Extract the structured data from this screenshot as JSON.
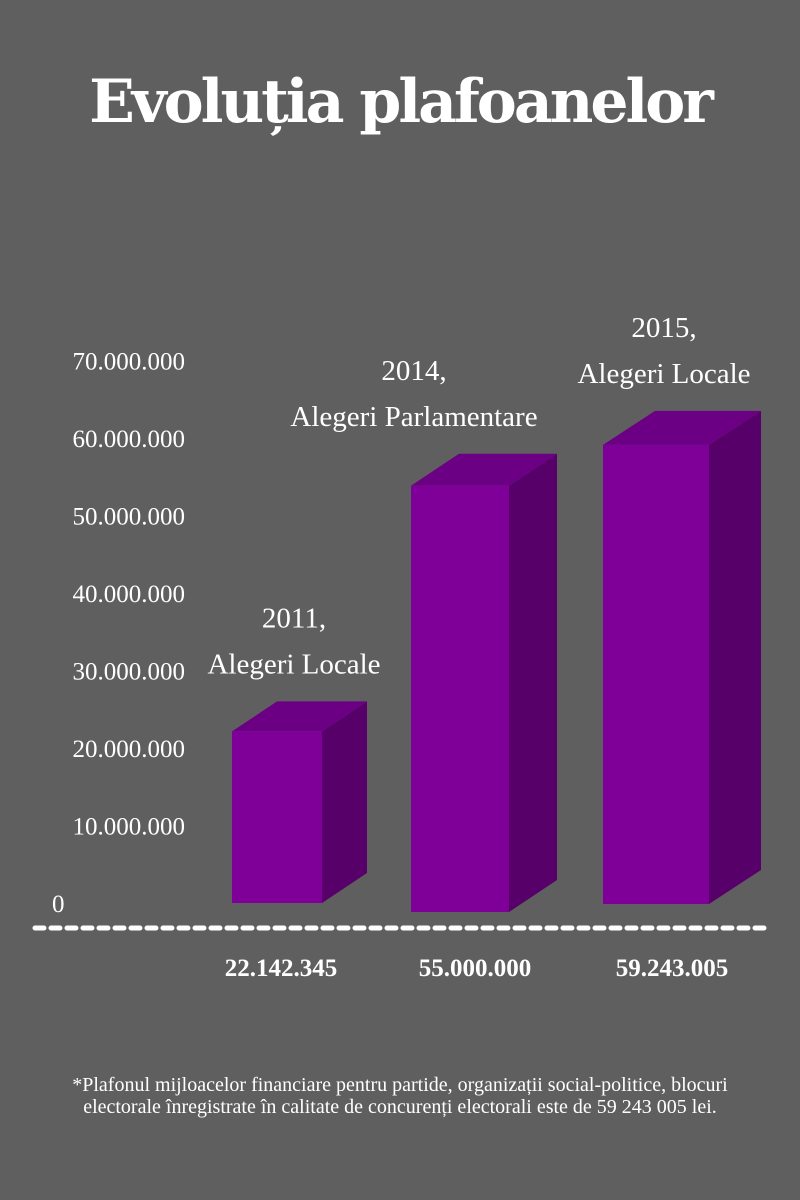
{
  "title": "Evoluția plafoanelor",
  "footnote": "*Plafonul mijloacelor financiare pentru partide, organizații social-politice, blocuri electorale înregistrate în calitate de concurenți electorali este de 59 243 005 lei.",
  "colors": {
    "background": "#5f5f5f",
    "bar_front": "#7e0099",
    "bar_side": "#58006a",
    "bar_top": "#6c0084",
    "text": "#ffffff"
  },
  "chart_data": {
    "type": "bar",
    "title": "Evoluția plafoanelor",
    "xlabel": "",
    "ylabel": "",
    "categories": [
      [
        "2011,",
        "Alegeri Locale"
      ],
      [
        "2014,",
        "Alegeri Parlamentare"
      ],
      [
        "2015,",
        "Alegeri Locale"
      ]
    ],
    "values": [
      22142345,
      55000000,
      59243005
    ],
    "value_labels": [
      "22.142.345",
      "55.000.000",
      "59.243.005"
    ],
    "y_ticks": [
      0,
      10000000,
      20000000,
      30000000,
      40000000,
      50000000,
      60000000,
      70000000
    ],
    "y_tick_labels": [
      "0",
      "10.000.000",
      "20.000.000",
      "30.000.000",
      "40.000.000",
      "50.000.000",
      "60.000.000",
      "70.000.000"
    ],
    "ylim": [
      0,
      70000000
    ],
    "grid": false,
    "legend": "none",
    "style": "3d-bar"
  }
}
